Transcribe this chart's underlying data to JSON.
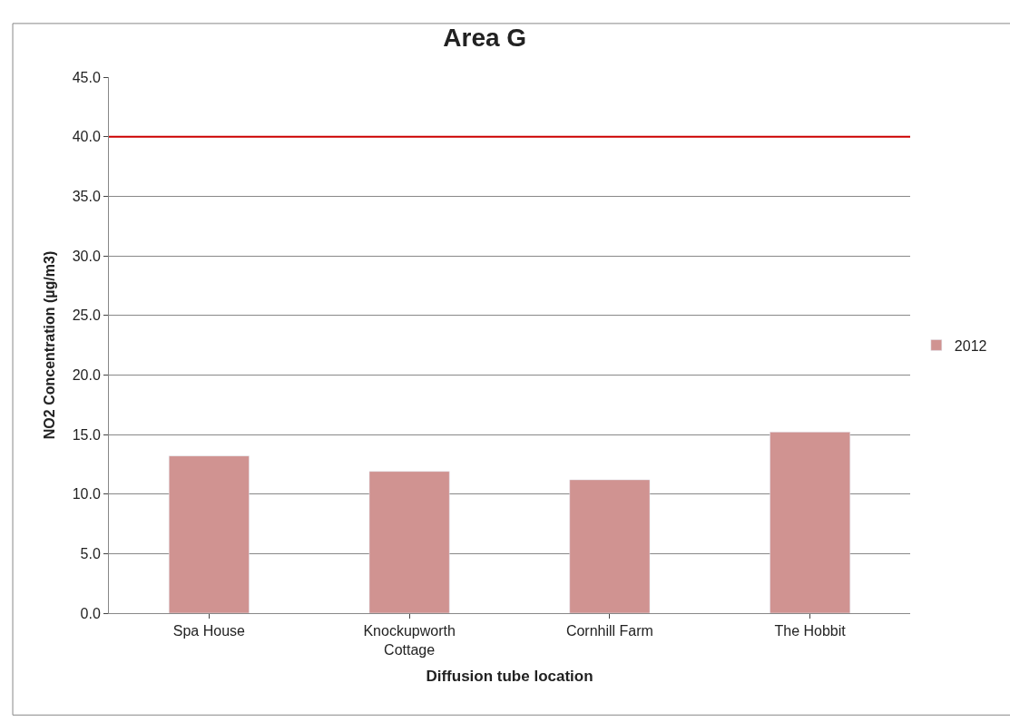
{
  "chart_data": {
    "type": "bar",
    "title": "Area G",
    "xlabel": "Diffusion tube location",
    "ylabel": "NO2 Concentration (µg/m3)",
    "categories": [
      "Spa House",
      "Knockupworth Cottage",
      "Cornhill Farm",
      "The Hobbit"
    ],
    "series": [
      {
        "name": "2012",
        "color": "#d09391",
        "values": [
          13.2,
          11.9,
          11.2,
          15.2
        ]
      }
    ],
    "ylim": [
      0,
      45
    ],
    "yticks": [
      {
        "value": 0,
        "label": "0.0"
      },
      {
        "value": 5,
        "label": "5.0"
      },
      {
        "value": 10,
        "label": "10.0"
      },
      {
        "value": 15,
        "label": "15.0"
      },
      {
        "value": 20,
        "label": "20.0"
      },
      {
        "value": 25,
        "label": "25.0"
      },
      {
        "value": 30,
        "label": "30.0"
      },
      {
        "value": 35,
        "label": "35.0"
      },
      {
        "value": 40,
        "label": "40.0"
      },
      {
        "value": 45,
        "label": "45.0"
      }
    ],
    "ref_lines": [
      {
        "axis": "y",
        "value": 40,
        "label": null,
        "color": "#cc0000"
      }
    ],
    "grid": "y",
    "legend": "right"
  }
}
